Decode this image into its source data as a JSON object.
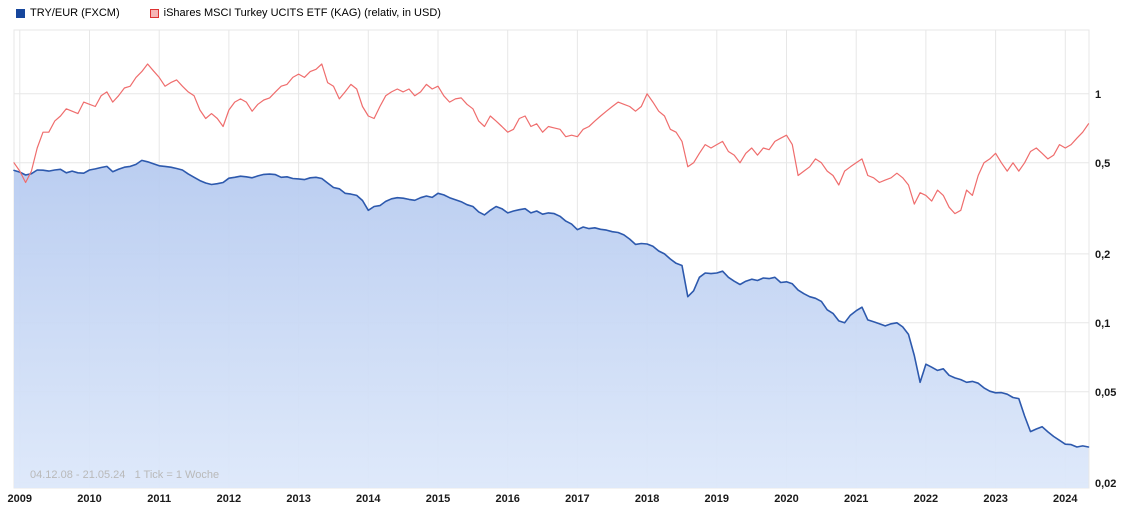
{
  "legend": {
    "items": [
      {
        "label": "TRY/EUR (FXCM)",
        "swatch_fill": "#16469c",
        "swatch_border": "#16469c"
      },
      {
        "label": "iShares MSCI Turkey UCITS ETF (KAG) (relativ, in USD)",
        "swatch_fill": "#f6b6b6",
        "swatch_border": "#dd3333"
      }
    ]
  },
  "footer": {
    "info": "04.12.08 - 21.05.24   1 Tick = 1 Woche"
  },
  "chart_data": {
    "type": "line",
    "title": "TRY/EUR (FXCM) vs iShares MSCI Turkey UCITS ETF (KAG) (relativ, in USD)",
    "y_scale": "log",
    "grid": true,
    "legend_position": "top-left",
    "x_range": [
      2008.9167,
      2024.34
    ],
    "y_range": [
      0.019,
      1.9
    ],
    "x_ticks": [
      2009,
      2010,
      2011,
      2012,
      2013,
      2014,
      2015,
      2016,
      2017,
      2018,
      2019,
      2020,
      2021,
      2022,
      2023,
      2024
    ],
    "y_ticks": [
      {
        "value": 1,
        "label": "1"
      },
      {
        "value": 0.5,
        "label": "0,5"
      },
      {
        "value": 0.2,
        "label": "0,2"
      },
      {
        "value": 0.1,
        "label": "0,1"
      },
      {
        "value": 0.05,
        "label": "0,05"
      },
      {
        "value": 0.02,
        "label": "0,02"
      }
    ],
    "grid_color": "#e7e7e7",
    "series": [
      {
        "key": "try-eur-line",
        "name": "TRY/EUR (FXCM)",
        "color": "#2d59ad",
        "line_width": 1.6,
        "area": true,
        "area_gradient_top": "#b7cbf0",
        "area_gradient_bottom": "#dde8fa",
        "x_start": 2008.9167,
        "x_step": 0.0833333,
        "values": [
          0.463,
          0.455,
          0.442,
          0.448,
          0.465,
          0.464,
          0.46,
          0.465,
          0.468,
          0.452,
          0.46,
          0.452,
          0.45,
          0.465,
          0.47,
          0.477,
          0.482,
          0.457,
          0.468,
          0.478,
          0.482,
          0.492,
          0.512,
          0.505,
          0.495,
          0.485,
          0.482,
          0.478,
          0.472,
          0.465,
          0.447,
          0.432,
          0.418,
          0.408,
          0.402,
          0.405,
          0.41,
          0.428,
          0.432,
          0.437,
          0.434,
          0.43,
          0.438,
          0.445,
          0.446,
          0.444,
          0.432,
          0.434,
          0.427,
          0.425,
          0.422,
          0.43,
          0.432,
          0.427,
          0.408,
          0.39,
          0.385,
          0.368,
          0.365,
          0.36,
          0.342,
          0.31,
          0.322,
          0.325,
          0.339,
          0.348,
          0.352,
          0.35,
          0.346,
          0.343,
          0.352,
          0.358,
          0.353,
          0.368,
          0.362,
          0.352,
          0.345,
          0.338,
          0.328,
          0.322,
          0.305,
          0.296,
          0.31,
          0.322,
          0.315,
          0.302,
          0.308,
          0.312,
          0.315,
          0.302,
          0.308,
          0.298,
          0.302,
          0.3,
          0.292,
          0.278,
          0.27,
          0.255,
          0.262,
          0.258,
          0.26,
          0.256,
          0.254,
          0.25,
          0.248,
          0.242,
          0.232,
          0.22,
          0.222,
          0.221,
          0.216,
          0.206,
          0.2,
          0.19,
          0.182,
          0.178,
          0.13,
          0.138,
          0.158,
          0.165,
          0.164,
          0.165,
          0.168,
          0.158,
          0.152,
          0.147,
          0.152,
          0.155,
          0.153,
          0.157,
          0.156,
          0.158,
          0.15,
          0.151,
          0.148,
          0.139,
          0.134,
          0.13,
          0.128,
          0.124,
          0.114,
          0.11,
          0.102,
          0.1,
          0.108,
          0.113,
          0.117,
          0.103,
          0.101,
          0.099,
          0.097,
          0.099,
          0.1,
          0.096,
          0.089,
          0.072,
          0.055,
          0.066,
          0.064,
          0.062,
          0.063,
          0.059,
          0.0575,
          0.0565,
          0.055,
          0.0555,
          0.0545,
          0.052,
          0.0503,
          0.0495,
          0.0496,
          0.0488,
          0.0472,
          0.0467,
          0.0392,
          0.0335,
          0.0344,
          0.0352,
          0.0334,
          0.0319,
          0.0307,
          0.0295,
          0.0294,
          0.0287,
          0.029,
          0.0287
        ]
      },
      {
        "key": "turkey-etf-line",
        "name": "iShares MSCI Turkey UCITS ETF (KAG) (relativ, in USD)",
        "color": "#ef6d6d",
        "line_width": 1.2,
        "area": false,
        "x_start": 2008.9167,
        "x_step": 0.0833333,
        "values": [
          0.5,
          0.46,
          0.41,
          0.46,
          0.58,
          0.68,
          0.68,
          0.76,
          0.8,
          0.86,
          0.84,
          0.82,
          0.92,
          0.9,
          0.88,
          0.98,
          1.02,
          0.92,
          0.98,
          1.06,
          1.08,
          1.18,
          1.25,
          1.35,
          1.26,
          1.18,
          1.08,
          1.12,
          1.15,
          1.08,
          1.02,
          0.98,
          0.85,
          0.78,
          0.82,
          0.78,
          0.72,
          0.85,
          0.92,
          0.95,
          0.92,
          0.84,
          0.9,
          0.94,
          0.96,
          1.02,
          1.08,
          1.1,
          1.18,
          1.22,
          1.18,
          1.25,
          1.28,
          1.35,
          1.12,
          1.08,
          0.95,
          1.02,
          1.1,
          1.05,
          0.88,
          0.8,
          0.78,
          0.88,
          0.98,
          1.02,
          1.05,
          1.02,
          1.05,
          0.98,
          1.02,
          1.1,
          1.05,
          1.08,
          0.98,
          0.92,
          0.95,
          0.96,
          0.9,
          0.86,
          0.76,
          0.72,
          0.8,
          0.76,
          0.72,
          0.68,
          0.7,
          0.78,
          0.8,
          0.72,
          0.74,
          0.68,
          0.72,
          0.71,
          0.7,
          0.65,
          0.66,
          0.65,
          0.7,
          0.72,
          0.76,
          0.8,
          0.84,
          0.88,
          0.92,
          0.9,
          0.88,
          0.84,
          0.88,
          1.0,
          0.92,
          0.84,
          0.8,
          0.7,
          0.68,
          0.62,
          0.48,
          0.5,
          0.55,
          0.6,
          0.58,
          0.6,
          0.62,
          0.56,
          0.54,
          0.5,
          0.55,
          0.58,
          0.54,
          0.58,
          0.57,
          0.62,
          0.64,
          0.66,
          0.6,
          0.44,
          0.46,
          0.48,
          0.52,
          0.5,
          0.46,
          0.44,
          0.4,
          0.46,
          0.48,
          0.5,
          0.52,
          0.44,
          0.43,
          0.41,
          0.42,
          0.43,
          0.45,
          0.43,
          0.4,
          0.33,
          0.37,
          0.36,
          0.34,
          0.38,
          0.36,
          0.32,
          0.3,
          0.31,
          0.38,
          0.36,
          0.44,
          0.5,
          0.52,
          0.55,
          0.5,
          0.46,
          0.5,
          0.46,
          0.5,
          0.56,
          0.58,
          0.55,
          0.52,
          0.54,
          0.6,
          0.58,
          0.6,
          0.64,
          0.68,
          0.74
        ]
      }
    ]
  }
}
